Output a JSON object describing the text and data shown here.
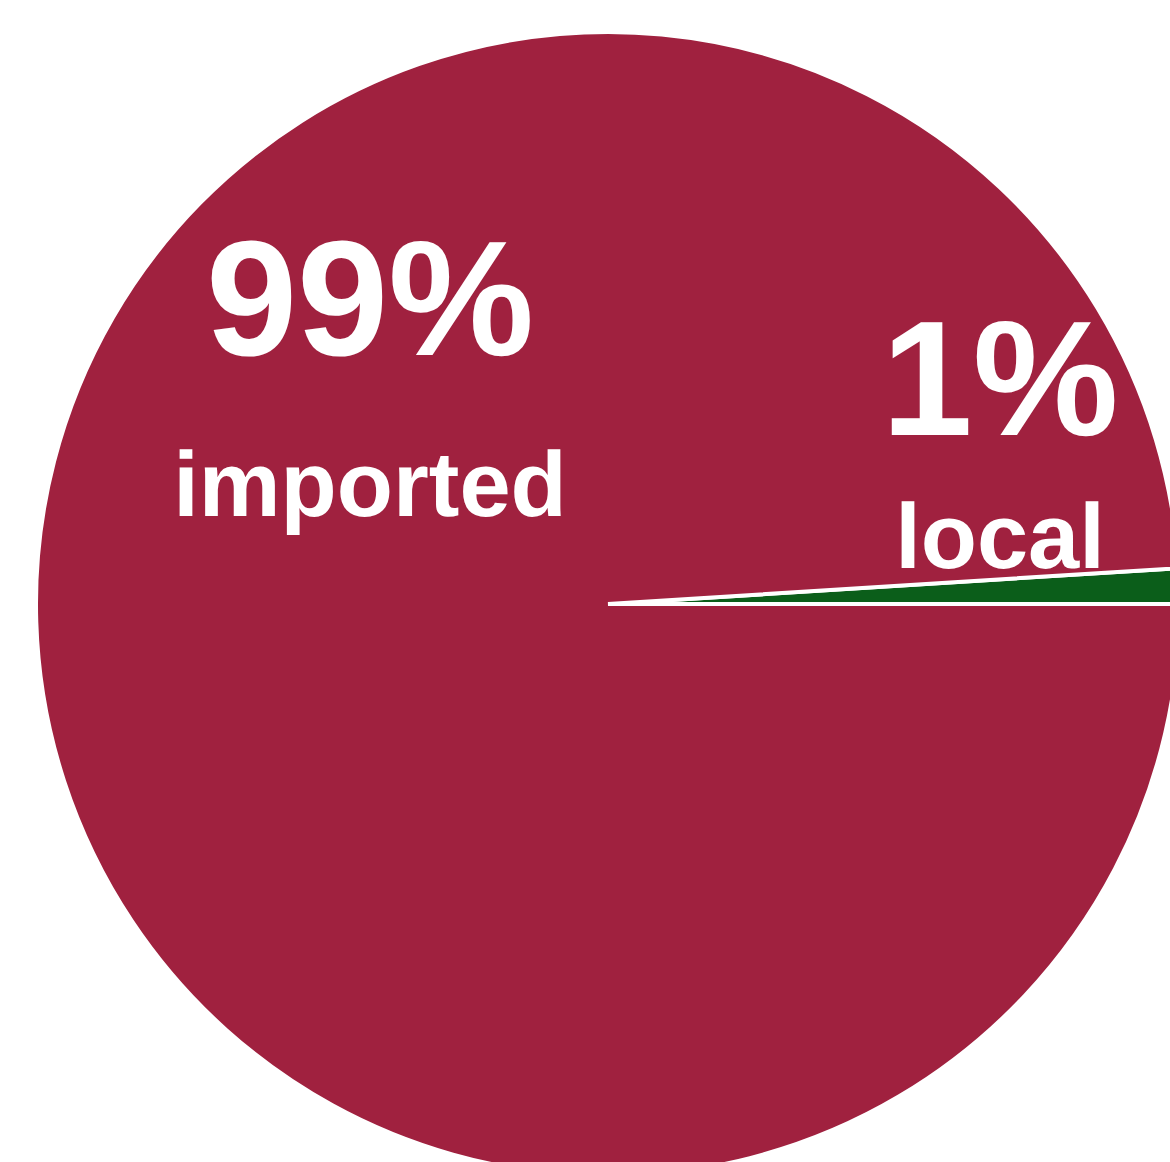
{
  "chart_data": {
    "type": "pie",
    "categories": [
      "local",
      "imported"
    ],
    "values": [
      1,
      99
    ],
    "colors": [
      "#0b5e1a",
      "#a0213f"
    ],
    "value_labels": [
      "1%",
      "99%"
    ]
  }
}
